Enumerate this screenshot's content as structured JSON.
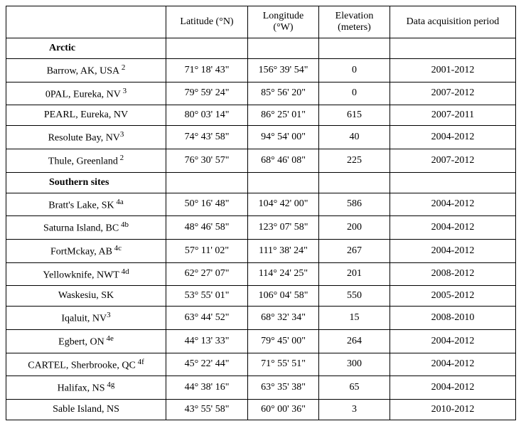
{
  "headers": {
    "col0": "",
    "col1": "Latitude (°N)",
    "col2": "Longitude (°W)",
    "col3": "Elevation (meters)",
    "col4": "Data acquisition period"
  },
  "rows": [
    {
      "type": "section",
      "label": "Arctic"
    },
    {
      "type": "data",
      "site": "Barrow, AK, USA",
      "sup": " 2",
      "lat": "71° 18' 43\"",
      "lon": "156° 39' 54\"",
      "elev": "0",
      "period": "2001-2012"
    },
    {
      "type": "data",
      "site": "0PAL, Eureka, NV",
      "sup": " 3",
      "lat": "79° 59' 24\"",
      "lon": "85° 56' 20\"",
      "elev": "0",
      "period": "2007-2012"
    },
    {
      "type": "data",
      "site": "PEARL, Eureka, NV",
      "sup": "",
      "lat": "80° 03' 14\"",
      "lon": "86° 25' 01\"",
      "elev": "615",
      "period": "2007-2011"
    },
    {
      "type": "data",
      "site": "Resolute Bay, NV",
      "sup": "3",
      "lat": "74° 43' 58\"",
      "lon": "94° 54' 00\"",
      "elev": "40",
      "period": "2004-2012"
    },
    {
      "type": "data",
      "site": "Thule, Greenland",
      "sup": " 2",
      "lat": "76° 30' 57\"",
      "lon": "68° 46' 08\"",
      "elev": "225",
      "period": "2007-2012"
    },
    {
      "type": "section",
      "label": "Southern sites"
    },
    {
      "type": "data",
      "site": "Bratt's Lake, SK",
      "sup": " 4a",
      "lat": "50° 16' 48\"",
      "lon": "104° 42' 00\"",
      "elev": "586",
      "period": "2004-2012"
    },
    {
      "type": "data",
      "site": "Saturna Island, BC",
      "sup": " 4b",
      "lat": "48° 46' 58\"",
      "lon": "123° 07' 58\"",
      "elev": "200",
      "period": "2004-2012"
    },
    {
      "type": "data",
      "site": "FortMckay, AB",
      "sup": " 4c",
      "lat": "57° 11' 02\"",
      "lon": "111° 38' 24\"",
      "elev": "267",
      "period": "2004-2012"
    },
    {
      "type": "data",
      "site": "Yellowknife, NWT",
      "sup": " 4d",
      "lat": "62° 27' 07\"",
      "lon": "114° 24' 25\"",
      "elev": "201",
      "period": "2008-2012"
    },
    {
      "type": "data",
      "site": "Waskesiu, SK",
      "sup": "",
      "lat": "53° 55' 01\"",
      "lon": "106° 04' 58\"",
      "elev": "550",
      "period": "2005-2012"
    },
    {
      "type": "data",
      "site": "Iqaluit, NV",
      "sup": "3",
      "lat": "63° 44' 52\"",
      "lon": "68° 32' 34\"",
      "elev": "15",
      "period": "2008-2010"
    },
    {
      "type": "data",
      "site": "Egbert, ON",
      "sup": " 4e",
      "lat": "44° 13' 33\"",
      "lon": "79° 45' 00\"",
      "elev": "264",
      "period": "2004-2012"
    },
    {
      "type": "data",
      "site": "CARTEL, Sherbrooke, QC",
      "sup": " 4f",
      "lat": "45° 22' 44\"",
      "lon": "71° 55' 51\"",
      "elev": "300",
      "period": "2004-2012"
    },
    {
      "type": "data",
      "site": "Halifax, NS",
      "sup": " 4g",
      "lat": "44° 38' 16\"",
      "lon": "63° 35' 38\"",
      "elev": "65",
      "period": "2004-2012"
    },
    {
      "type": "data",
      "site": "Sable Island, NS",
      "sup": "",
      "lat": "43° 55' 58\"",
      "lon": "60° 00' 36\"",
      "elev": "3",
      "period": "2010-2012"
    }
  ]
}
